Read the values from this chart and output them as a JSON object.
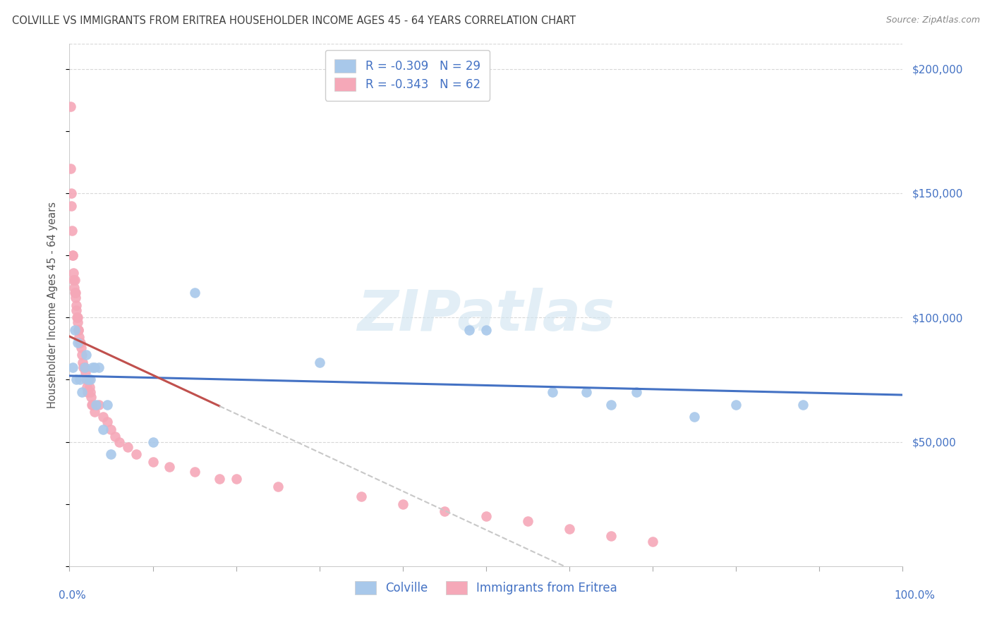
{
  "title": "COLVILLE VS IMMIGRANTS FROM ERITREA HOUSEHOLDER INCOME AGES 45 - 64 YEARS CORRELATION CHART",
  "source": "Source: ZipAtlas.com",
  "ylabel": "Householder Income Ages 45 - 64 years",
  "watermark": "ZIPatlas",
  "legend_label1": "Colville",
  "legend_label2": "Immigrants from Eritrea",
  "R1": -0.309,
  "N1": 29,
  "R2": -0.343,
  "N2": 62,
  "blue_color": "#a8c8ea",
  "pink_color": "#f5a8b8",
  "blue_line_color": "#4472c4",
  "pink_line_color": "#c0504d",
  "pink_line_dash_color": "#c8c8c8",
  "title_color": "#404040",
  "source_color": "#888888",
  "axis_label_color": "#4472c4",
  "background_color": "#ffffff",
  "grid_color": "#d8d8d8",
  "blue_scatter_x": [
    0.4,
    0.6,
    0.8,
    1.0,
    1.2,
    1.5,
    1.8,
    2.0,
    2.2,
    2.5,
    2.8,
    3.0,
    3.2,
    3.5,
    4.0,
    4.5,
    5.0,
    10.0,
    15.0,
    30.0,
    48.0,
    50.0,
    58.0,
    62.0,
    65.0,
    68.0,
    75.0,
    80.0,
    88.0
  ],
  "blue_scatter_y": [
    80000,
    95000,
    75000,
    90000,
    75000,
    70000,
    80000,
    85000,
    75000,
    75000,
    80000,
    80000,
    65000,
    80000,
    55000,
    65000,
    45000,
    50000,
    110000,
    82000,
    95000,
    95000,
    70000,
    70000,
    65000,
    70000,
    60000,
    65000,
    65000
  ],
  "pink_scatter_x": [
    0.1,
    0.15,
    0.2,
    0.25,
    0.3,
    0.35,
    0.4,
    0.45,
    0.5,
    0.55,
    0.6,
    0.65,
    0.7,
    0.75,
    0.8,
    0.85,
    0.9,
    0.95,
    1.0,
    1.05,
    1.1,
    1.15,
    1.2,
    1.3,
    1.4,
    1.5,
    1.6,
    1.7,
    1.8,
    1.9,
    2.0,
    2.1,
    2.2,
    2.3,
    2.4,
    2.5,
    2.6,
    2.7,
    2.8,
    3.0,
    3.5,
    4.0,
    4.5,
    5.0,
    5.5,
    6.0,
    7.0,
    8.0,
    10.0,
    12.0,
    15.0,
    18.0,
    20.0,
    25.0,
    35.0,
    40.0,
    45.0,
    50.0,
    55.0,
    60.0,
    65.0,
    70.0
  ],
  "pink_scatter_y": [
    185000,
    160000,
    150000,
    145000,
    135000,
    125000,
    125000,
    118000,
    115000,
    112000,
    115000,
    110000,
    110000,
    108000,
    105000,
    103000,
    100000,
    98000,
    100000,
    95000,
    95000,
    92000,
    90000,
    90000,
    88000,
    85000,
    82000,
    80000,
    80000,
    78000,
    75000,
    72000,
    70000,
    75000,
    72000,
    70000,
    68000,
    65000,
    65000,
    62000,
    65000,
    60000,
    58000,
    55000,
    52000,
    50000,
    48000,
    45000,
    42000,
    40000,
    38000,
    35000,
    35000,
    32000,
    28000,
    25000,
    22000,
    20000,
    18000,
    15000,
    12000,
    10000
  ],
  "xlim_min": 0,
  "xlim_max": 100,
  "ylim_min": 0,
  "ylim_max": 210000,
  "ytick_vals": [
    50000,
    100000,
    150000,
    200000
  ],
  "ytick_labels": [
    "$50,000",
    "$100,000",
    "$150,000",
    "$200,000"
  ],
  "xtick_vals": [
    0,
    10,
    20,
    30,
    40,
    50,
    60,
    70,
    80,
    90,
    100
  ],
  "blue_line_x_start": 0,
  "blue_line_x_end": 100,
  "pink_solid_x_end": 18,
  "pink_dash_x_end": 100
}
